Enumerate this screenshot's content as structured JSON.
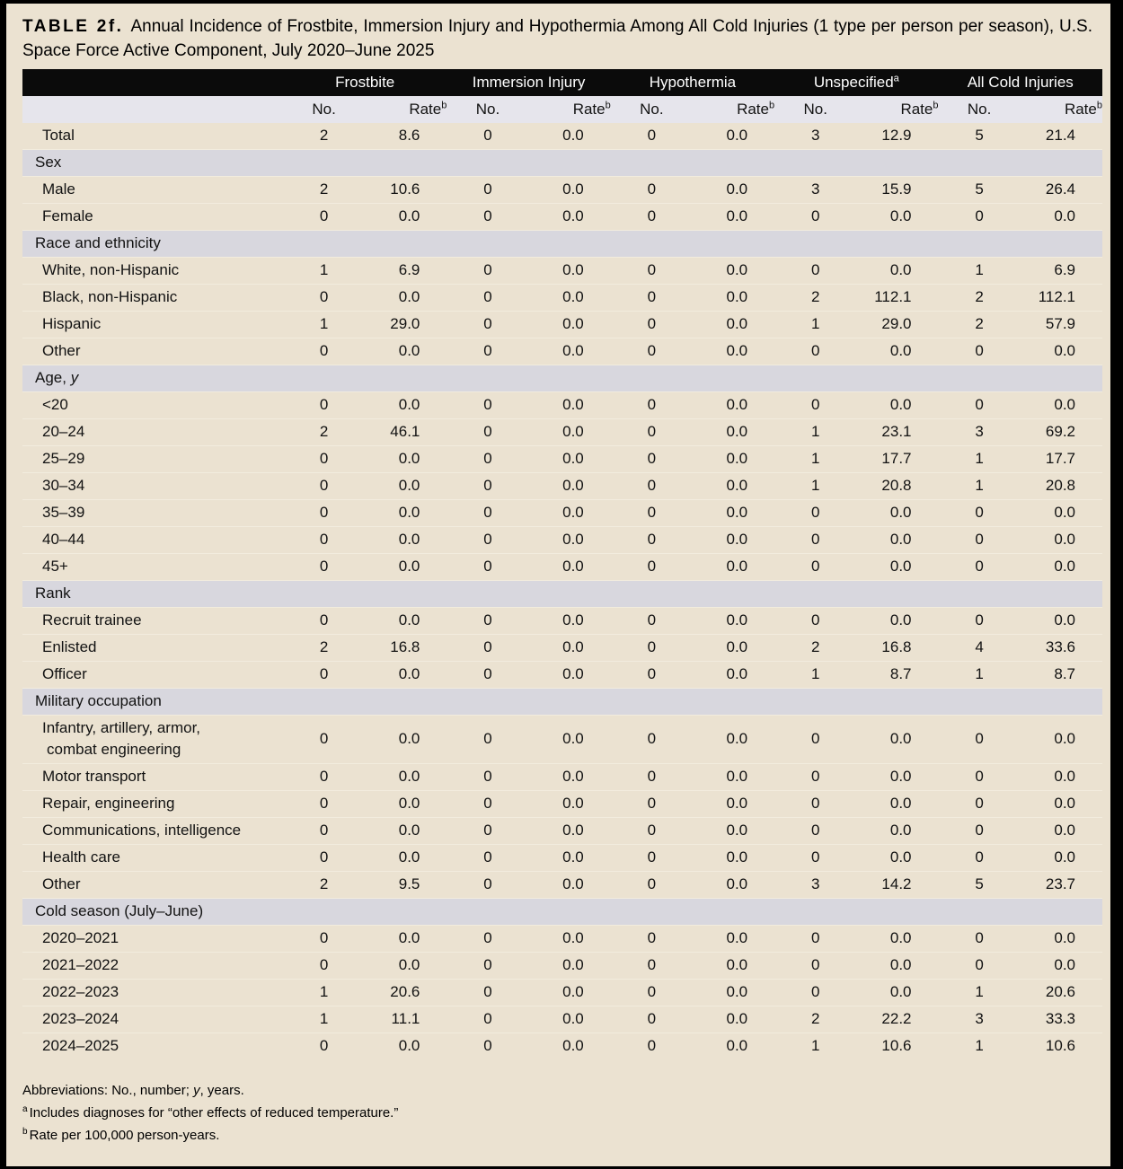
{
  "colors": {
    "frame_bg": "#000000",
    "page_bg": "#EBE2D1",
    "header_bg": "#0B0B0B",
    "header_text": "#FFFFFF",
    "section_bg": "#D8D7DE",
    "subheader_bg": "#E6E5EC",
    "row_separator": "#F2ECDE"
  },
  "title": {
    "label": "TABLE 2f.",
    "text": "Annual Incidence of Frostbite, Immersion Injury and Hypothermia Among All Cold Injuries (1 type per person per season), U.S. Space Force Active Component, July 2020–June 2025"
  },
  "table": {
    "group_headers": [
      {
        "label": "Frostbite",
        "sup": ""
      },
      {
        "label": "Immersion Injury",
        "sup": ""
      },
      {
        "label": "Hypothermia",
        "sup": ""
      },
      {
        "label": "Unspecified",
        "sup": "a"
      },
      {
        "label": "All Cold Injuries",
        "sup": ""
      }
    ],
    "subheader": {
      "no": "No.",
      "rate": "Rate",
      "rate_sup": "b"
    },
    "rows": [
      {
        "type": "data",
        "label": "Total",
        "values": [
          "2",
          "8.6",
          "0",
          "0.0",
          "0",
          "0.0",
          "3",
          "12.9",
          "5",
          "21.4"
        ]
      },
      {
        "type": "section",
        "label": "Sex",
        "italic": ""
      },
      {
        "type": "data",
        "label": "Male",
        "values": [
          "2",
          "10.6",
          "0",
          "0.0",
          "0",
          "0.0",
          "3",
          "15.9",
          "5",
          "26.4"
        ]
      },
      {
        "type": "data",
        "label": "Female",
        "values": [
          "0",
          "0.0",
          "0",
          "0.0",
          "0",
          "0.0",
          "0",
          "0.0",
          "0",
          "0.0"
        ]
      },
      {
        "type": "section",
        "label": "Race and ethnicity",
        "italic": ""
      },
      {
        "type": "data",
        "label": "White, non-Hispanic",
        "values": [
          "1",
          "6.9",
          "0",
          "0.0",
          "0",
          "0.0",
          "0",
          "0.0",
          "1",
          "6.9"
        ]
      },
      {
        "type": "data",
        "label": "Black, non-Hispanic",
        "values": [
          "0",
          "0.0",
          "0",
          "0.0",
          "0",
          "0.0",
          "2",
          "112.1",
          "2",
          "112.1"
        ]
      },
      {
        "type": "data",
        "label": "Hispanic",
        "values": [
          "1",
          "29.0",
          "0",
          "0.0",
          "0",
          "0.0",
          "1",
          "29.0",
          "2",
          "57.9"
        ]
      },
      {
        "type": "data",
        "label": "Other",
        "values": [
          "0",
          "0.0",
          "0",
          "0.0",
          "0",
          "0.0",
          "0",
          "0.0",
          "0",
          "0.0"
        ]
      },
      {
        "type": "section",
        "label": "Age, ",
        "italic": "y"
      },
      {
        "type": "data",
        "label": "<20",
        "values": [
          "0",
          "0.0",
          "0",
          "0.0",
          "0",
          "0.0",
          "0",
          "0.0",
          "0",
          "0.0"
        ]
      },
      {
        "type": "data",
        "label": "20–24",
        "values": [
          "2",
          "46.1",
          "0",
          "0.0",
          "0",
          "0.0",
          "1",
          "23.1",
          "3",
          "69.2"
        ]
      },
      {
        "type": "data",
        "label": "25–29",
        "values": [
          "0",
          "0.0",
          "0",
          "0.0",
          "0",
          "0.0",
          "1",
          "17.7",
          "1",
          "17.7"
        ]
      },
      {
        "type": "data",
        "label": "30–34",
        "values": [
          "0",
          "0.0",
          "0",
          "0.0",
          "0",
          "0.0",
          "1",
          "20.8",
          "1",
          "20.8"
        ]
      },
      {
        "type": "data",
        "label": "35–39",
        "values": [
          "0",
          "0.0",
          "0",
          "0.0",
          "0",
          "0.0",
          "0",
          "0.0",
          "0",
          "0.0"
        ]
      },
      {
        "type": "data",
        "label": "40–44",
        "values": [
          "0",
          "0.0",
          "0",
          "0.0",
          "0",
          "0.0",
          "0",
          "0.0",
          "0",
          "0.0"
        ]
      },
      {
        "type": "data",
        "label": "45+",
        "values": [
          "0",
          "0.0",
          "0",
          "0.0",
          "0",
          "0.0",
          "0",
          "0.0",
          "0",
          "0.0"
        ]
      },
      {
        "type": "section",
        "label": "Rank",
        "italic": ""
      },
      {
        "type": "data",
        "label": "Recruit trainee",
        "values": [
          "0",
          "0.0",
          "0",
          "0.0",
          "0",
          "0.0",
          "0",
          "0.0",
          "0",
          "0.0"
        ]
      },
      {
        "type": "data",
        "label": "Enlisted",
        "values": [
          "2",
          "16.8",
          "0",
          "0.0",
          "0",
          "0.0",
          "2",
          "16.8",
          "4",
          "33.6"
        ]
      },
      {
        "type": "data",
        "label": "Officer",
        "values": [
          "0",
          "0.0",
          "0",
          "0.0",
          "0",
          "0.0",
          "1",
          "8.7",
          "1",
          "8.7"
        ]
      },
      {
        "type": "section",
        "label": "Military occupation",
        "italic": ""
      },
      {
        "type": "data",
        "label": "Infantry, artillery, armor,",
        "label2": "combat engineering",
        "values": [
          "0",
          "0.0",
          "0",
          "0.0",
          "0",
          "0.0",
          "0",
          "0.0",
          "0",
          "0.0"
        ]
      },
      {
        "type": "data",
        "label": "Motor transport",
        "values": [
          "0",
          "0.0",
          "0",
          "0.0",
          "0",
          "0.0",
          "0",
          "0.0",
          "0",
          "0.0"
        ]
      },
      {
        "type": "data",
        "label": "Repair, engineering",
        "values": [
          "0",
          "0.0",
          "0",
          "0.0",
          "0",
          "0.0",
          "0",
          "0.0",
          "0",
          "0.0"
        ]
      },
      {
        "type": "data",
        "label": "Communications, intelligence",
        "values": [
          "0",
          "0.0",
          "0",
          "0.0",
          "0",
          "0.0",
          "0",
          "0.0",
          "0",
          "0.0"
        ]
      },
      {
        "type": "data",
        "label": "Health care",
        "values": [
          "0",
          "0.0",
          "0",
          "0.0",
          "0",
          "0.0",
          "0",
          "0.0",
          "0",
          "0.0"
        ]
      },
      {
        "type": "data",
        "label": "Other",
        "values": [
          "2",
          "9.5",
          "0",
          "0.0",
          "0",
          "0.0",
          "3",
          "14.2",
          "5",
          "23.7"
        ]
      },
      {
        "type": "section",
        "label": "Cold season (July–June)",
        "italic": ""
      },
      {
        "type": "data",
        "label": "2020–2021",
        "values": [
          "0",
          "0.0",
          "0",
          "0.0",
          "0",
          "0.0",
          "0",
          "0.0",
          "0",
          "0.0"
        ]
      },
      {
        "type": "data",
        "label": "2021–2022",
        "values": [
          "0",
          "0.0",
          "0",
          "0.0",
          "0",
          "0.0",
          "0",
          "0.0",
          "0",
          "0.0"
        ]
      },
      {
        "type": "data",
        "label": "2022–2023",
        "values": [
          "1",
          "20.6",
          "0",
          "0.0",
          "0",
          "0.0",
          "0",
          "0.0",
          "1",
          "20.6"
        ]
      },
      {
        "type": "data",
        "label": "2023–2024",
        "values": [
          "1",
          "11.1",
          "0",
          "0.0",
          "0",
          "0.0",
          "2",
          "22.2",
          "3",
          "33.3"
        ]
      },
      {
        "type": "data",
        "label": "2024–2025",
        "values": [
          "0",
          "0.0",
          "0",
          "0.0",
          "0",
          "0.0",
          "1",
          "10.6",
          "1",
          "10.6"
        ]
      }
    ]
  },
  "footnotes": [
    {
      "sup": "",
      "pre": "Abbreviations: No., number; ",
      "italic": "y",
      "post": ", years."
    },
    {
      "sup": "a",
      "pre": "Includes diagnoses for “other effects of reduced temperature.”",
      "italic": "",
      "post": ""
    },
    {
      "sup": "b",
      "pre": "Rate per 100,000 person-years.",
      "italic": "",
      "post": ""
    }
  ]
}
